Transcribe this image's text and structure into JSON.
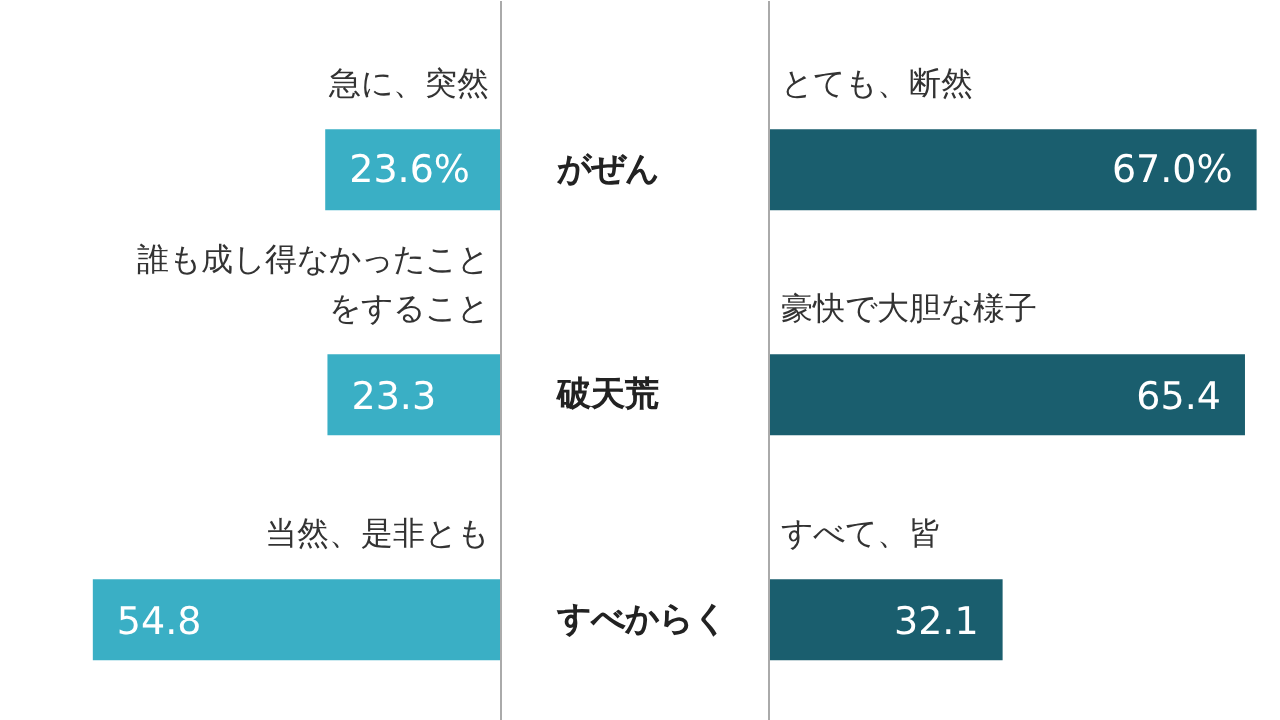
{
  "chart_data": [
    {
      "type": "bar",
      "orientation": "horizontal",
      "categories": [
        "がぜん",
        "破天荒",
        "すべからく"
      ],
      "values": [
        23.6,
        23.3,
        54.8
      ],
      "color": "#3aafc5",
      "value_labels": [
        "23.6%",
        "23.3",
        "54.8"
      ],
      "tick_labels": "y",
      "annotations": [
        "急に、突然",
        "誰も成し得なかったことをすること",
        "当然、是非とも"
      ]
    },
    {
      "type": "bar",
      "orientation": "horizontal",
      "categories": [
        null,
        null,
        null
      ],
      "values": [
        67.0,
        65.4,
        32.1
      ],
      "color": "#1a5e6e",
      "value_labels": [
        "67.0%",
        "65.4",
        "32.1"
      ],
      "tick_labels": false,
      "annotations": [
        "とても、断然",
        "豪快で大胆な様子",
        "すべて、皆"
      ]
    }
  ]
}
